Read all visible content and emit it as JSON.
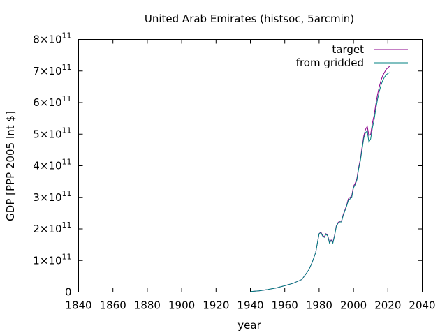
{
  "chart_data": {
    "type": "line",
    "title": "United Arab Emirates (histsoc, 5arcmin)",
    "xlabel": "year",
    "ylabel": "GDP [PPP 2005 Int $]",
    "xlim": [
      1840,
      2040
    ],
    "ylim": [
      0,
      800000000000
    ],
    "x_ticks": [
      1840,
      1860,
      1880,
      1900,
      1920,
      1940,
      1960,
      1980,
      2000,
      2020,
      2040
    ],
    "x_tick_labels": [
      "1840",
      "1860",
      "1880",
      "1900",
      "1920",
      "1940",
      "1960",
      "1980",
      "2000",
      "2020",
      "2040"
    ],
    "y_ticks": [
      0,
      100000000000,
      200000000000,
      300000000000,
      400000000000,
      500000000000,
      600000000000,
      700000000000,
      800000000000
    ],
    "y_tick_labels": [
      {
        "m": "0",
        "e": ""
      },
      {
        "m": "1×10",
        "e": "11"
      },
      {
        "m": "2×10",
        "e": "11"
      },
      {
        "m": "3×10",
        "e": "11"
      },
      {
        "m": "4×10",
        "e": "11"
      },
      {
        "m": "5×10",
        "e": "11"
      },
      {
        "m": "6×10",
        "e": "11"
      },
      {
        "m": "7×10",
        "e": "11"
      },
      {
        "m": "8×10",
        "e": "11"
      }
    ],
    "grid": false,
    "legend_position": "top-right",
    "x": [
      1940,
      1945,
      1950,
      1955,
      1960,
      1965,
      1970,
      1972,
      1974,
      1976,
      1977,
      1978,
      1979,
      1980,
      1981,
      1982,
      1983,
      1984,
      1985,
      1986,
      1987,
      1988,
      1989,
      1990,
      1991,
      1992,
      1993,
      1994,
      1995,
      1996,
      1997,
      1998,
      1999,
      2000,
      2001,
      2002,
      2003,
      2004,
      2005,
      2006,
      2007,
      2008,
      2009,
      2010,
      2011,
      2012,
      2013,
      2014,
      2015,
      2016,
      2017,
      2018,
      2019,
      2020,
      2021
    ],
    "series": [
      {
        "name": "target",
        "color": "#8b008b",
        "values": [
          1500000000.0,
          4000000000.0,
          8000000000.0,
          13000000000.0,
          20000000000.0,
          28000000000.0,
          40000000000.0,
          55000000000.0,
          70000000000.0,
          95000000000.0,
          110000000000.0,
          125000000000.0,
          155000000000.0,
          185000000000.0,
          190000000000.0,
          180000000000.0,
          175000000000.0,
          185000000000.0,
          180000000000.0,
          158000000000.0,
          165000000000.0,
          158000000000.0,
          180000000000.0,
          210000000000.0,
          220000000000.0,
          225000000000.0,
          225000000000.0,
          245000000000.0,
          260000000000.0,
          275000000000.0,
          295000000000.0,
          300000000000.0,
          305000000000.0,
          335000000000.0,
          345000000000.0,
          360000000000.0,
          395000000000.0,
          420000000000.0,
          460000000000.0,
          495000000000.0,
          515000000000.0,
          525000000000.0,
          495000000000.0,
          500000000000.0,
          535000000000.0,
          560000000000.0,
          595000000000.0,
          625000000000.0,
          650000000000.0,
          670000000000.0,
          685000000000.0,
          695000000000.0,
          705000000000.0,
          710000000000.0,
          715000000000.0
        ]
      },
      {
        "name": "from gridded",
        "color": "#008080",
        "values": [
          1500000000.0,
          4000000000.0,
          8000000000.0,
          13000000000.0,
          20000000000.0,
          28000000000.0,
          40000000000.0,
          55000000000.0,
          70000000000.0,
          95000000000.0,
          110000000000.0,
          125000000000.0,
          155000000000.0,
          185000000000.0,
          188000000000.0,
          178000000000.0,
          173000000000.0,
          183000000000.0,
          178000000000.0,
          155000000000.0,
          163000000000.0,
          155000000000.0,
          178000000000.0,
          208000000000.0,
          218000000000.0,
          222000000000.0,
          222000000000.0,
          242000000000.0,
          257000000000.0,
          272000000000.0,
          290000000000.0,
          295000000000.0,
          300000000000.0,
          330000000000.0,
          340000000000.0,
          355000000000.0,
          390000000000.0,
          415000000000.0,
          452000000000.0,
          488000000000.0,
          505000000000.0,
          510000000000.0,
          475000000000.0,
          485000000000.0,
          520000000000.0,
          545000000000.0,
          580000000000.0,
          610000000000.0,
          635000000000.0,
          655000000000.0,
          670000000000.0,
          680000000000.0,
          688000000000.0,
          692000000000.0,
          695000000000.0
        ]
      }
    ]
  }
}
